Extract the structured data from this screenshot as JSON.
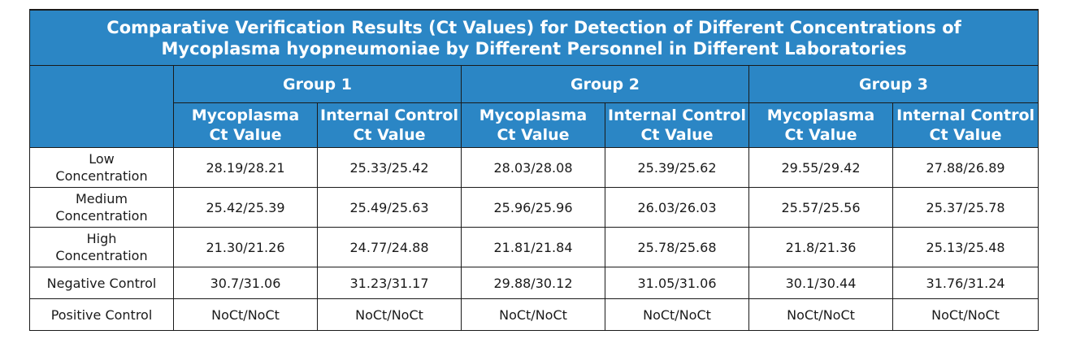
{
  "title": {
    "line1": "Comparative Verification Results (Ct Values) for Detection of Different Concentrations of",
    "line2": "Mycoplasma hyopneumoniae by Different Personnel in Different Laboratories"
  },
  "header": {
    "groups": [
      "Group 1",
      "Group 2",
      "Group 3"
    ],
    "subcolumns": [
      {
        "line1": "Mycoplasma",
        "line2": "Ct Value"
      },
      {
        "line1": "Internal Control",
        "line2": "Ct Value"
      }
    ]
  },
  "rows": [
    {
      "label": [
        "Low",
        "Concentration"
      ],
      "values": [
        "28.19/28.21",
        "25.33/25.42",
        "28.03/28.08",
        "25.39/25.62",
        "29.55/29.42",
        "27.88/26.89"
      ]
    },
    {
      "label": [
        "Medium",
        "Concentration"
      ],
      "values": [
        "25.42/25.39",
        "25.49/25.63",
        "25.96/25.96",
        "26.03/26.03",
        "25.57/25.56",
        "25.37/25.78"
      ]
    },
    {
      "label": [
        "High",
        "Concentration"
      ],
      "values": [
        "21.30/21.26",
        "24.77/24.88",
        "21.81/21.84",
        "25.78/25.68",
        "21.8/21.36",
        "25.13/25.48"
      ]
    },
    {
      "label": [
        "Negative Control"
      ],
      "values": [
        "30.7/31.06",
        "31.23/31.17",
        "29.88/30.12",
        "31.05/31.06",
        "30.1/30.44",
        "31.76/31.24"
      ]
    },
    {
      "label": [
        "Positive Control"
      ],
      "values": [
        "NoCt/NoCt",
        "NoCt/NoCt",
        "NoCt/NoCt",
        "NoCt/NoCt",
        "NoCt/NoCt",
        "NoCt/NoCt"
      ]
    }
  ],
  "colors": {
    "header_bg": "#2b86c5",
    "header_text": "#ffffff",
    "border": "#1a1a1a",
    "body_text": "#1a1a1a"
  }
}
